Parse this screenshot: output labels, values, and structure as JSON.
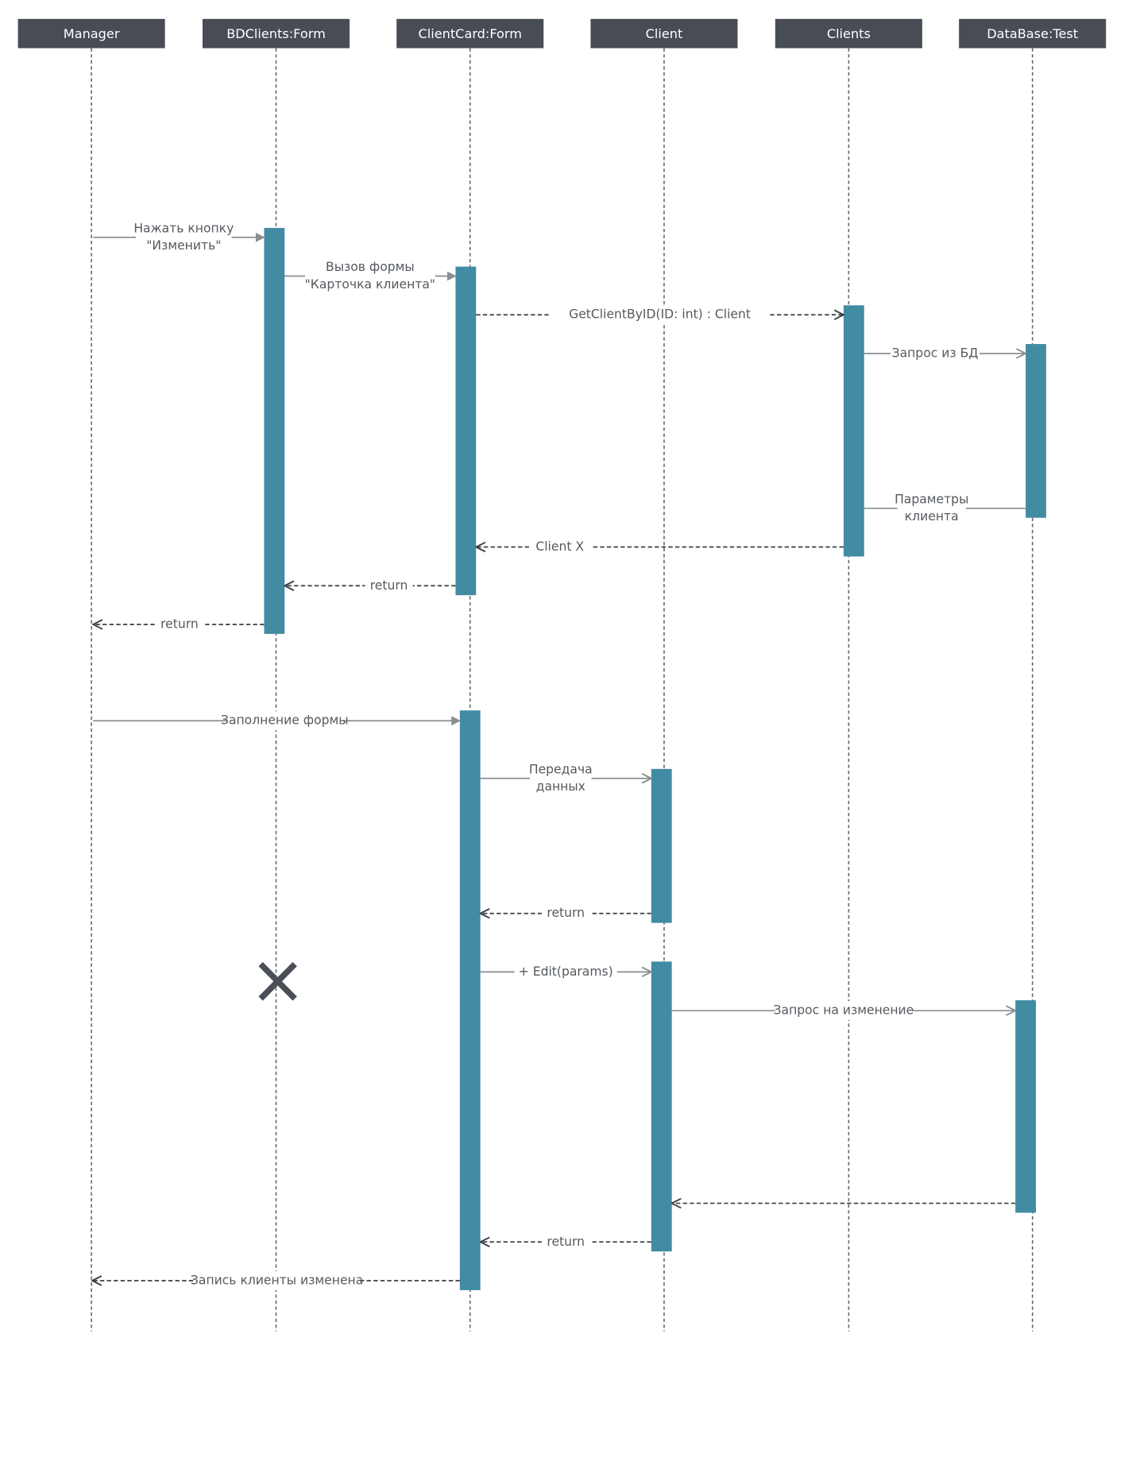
{
  "diagram": {
    "participants": [
      {
        "id": "manager",
        "label": "Manager"
      },
      {
        "id": "bdclients",
        "label": "BDClients:Form"
      },
      {
        "id": "clientcard",
        "label": "ClientCard:Form"
      },
      {
        "id": "client",
        "label": "Client"
      },
      {
        "id": "clients",
        "label": "Clients"
      },
      {
        "id": "database",
        "label": "DataBase:Test"
      }
    ],
    "messages": [
      {
        "id": "m1",
        "from": "manager",
        "to": "bdclients",
        "kind": "call",
        "lines": [
          "Нажать кнопку",
          "\"Изменить\""
        ]
      },
      {
        "id": "m2",
        "from": "bdclients",
        "to": "clientcard",
        "kind": "call",
        "lines": [
          "Вызов формы",
          "\"Карточка клиента\""
        ]
      },
      {
        "id": "m3",
        "from": "clientcard",
        "to": "clients",
        "kind": "dashed",
        "lines": [
          "GetClientByID(ID: int) : Client"
        ]
      },
      {
        "id": "m4",
        "from": "clients",
        "to": "database",
        "kind": "call",
        "lines": [
          "Запрос из БД"
        ]
      },
      {
        "id": "m5",
        "from": "database",
        "to": "clients",
        "kind": "line",
        "lines": [
          "Параметры",
          "клиента"
        ]
      },
      {
        "id": "m6",
        "from": "clients",
        "to": "clientcard",
        "kind": "return",
        "lines": [
          "Client X"
        ]
      },
      {
        "id": "m7",
        "from": "clientcard",
        "to": "bdclients",
        "kind": "return",
        "lines": [
          "return"
        ]
      },
      {
        "id": "m8",
        "from": "bdclients",
        "to": "manager",
        "kind": "return",
        "lines": [
          "return"
        ]
      },
      {
        "id": "m9",
        "from": "manager",
        "to": "clientcard",
        "kind": "call",
        "lines": [
          "Заполнение формы"
        ]
      },
      {
        "id": "m10",
        "from": "clientcard",
        "to": "client",
        "kind": "call",
        "lines": [
          "Передача",
          "данных"
        ]
      },
      {
        "id": "m11",
        "from": "client",
        "to": "clientcard",
        "kind": "return",
        "lines": [
          "return"
        ]
      },
      {
        "id": "m12",
        "from": "clientcard",
        "to": "client",
        "kind": "call",
        "lines": [
          "+ Edit(params)"
        ]
      },
      {
        "id": "m13",
        "from": "client",
        "to": "database",
        "kind": "call",
        "lines": [
          "Запрос на изменение"
        ]
      },
      {
        "id": "m14",
        "from": "database",
        "to": "client",
        "kind": "return",
        "lines": []
      },
      {
        "id": "m15",
        "from": "client",
        "to": "clientcard",
        "kind": "return",
        "lines": [
          "return"
        ]
      },
      {
        "id": "m16",
        "from": "clientcard",
        "to": "manager",
        "kind": "return",
        "lines": [
          "Запись клиенты изменена"
        ]
      }
    ],
    "destroyed": "bdclients",
    "colors": {
      "header_bg": "#474c55",
      "activation": "#418ca3",
      "lifeline": "#666a70",
      "solid_arrow": "#8a8e92",
      "dashed_arrow": "#3b3f44",
      "destroy_mark": "#4a4f57",
      "message_text": "#555a5f"
    }
  }
}
